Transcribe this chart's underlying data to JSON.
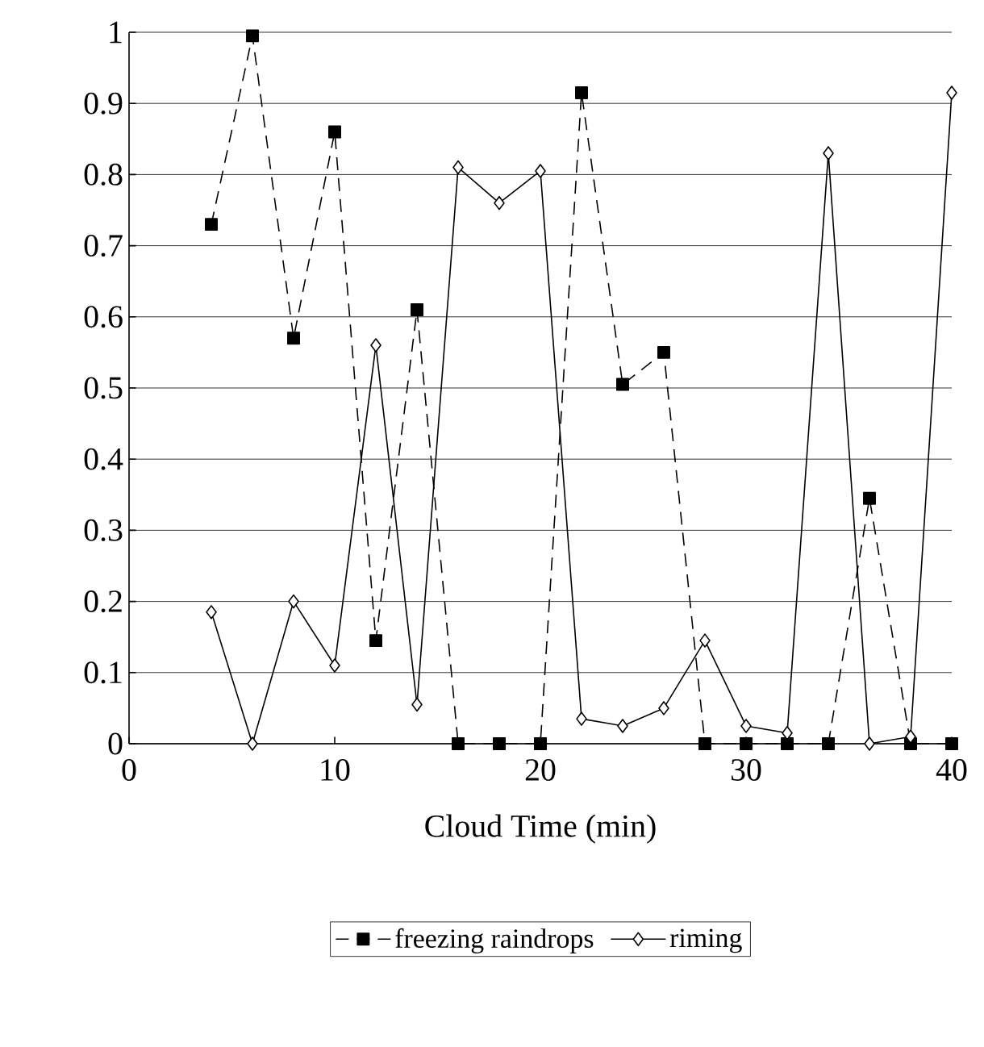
{
  "chart_data": {
    "type": "line",
    "xlabel": "Cloud Time (min)",
    "x": [
      4,
      6,
      8,
      10,
      12,
      14,
      16,
      18,
      20,
      22,
      24,
      26,
      28,
      30,
      32,
      34,
      36,
      38,
      40
    ],
    "series": [
      {
        "name": "freezing raindrops",
        "color": "#000000",
        "marker": "square",
        "line_style": "dashed",
        "values": [
          0.73,
          0.995,
          0.57,
          0.86,
          0.145,
          0.61,
          0,
          0,
          0,
          0.915,
          0.505,
          0.55,
          0,
          0,
          0,
          0,
          0.345,
          0,
          0
        ]
      },
      {
        "name": "riming",
        "color": "#000000",
        "marker": "diamond",
        "line_style": "solid",
        "values": [
          0.185,
          0,
          0.2,
          0.11,
          0.56,
          0.055,
          0.81,
          0.76,
          0.805,
          0.035,
          0.025,
          0.05,
          0.145,
          0.025,
          0.015,
          0.83,
          0,
          0.01,
          0.915
        ]
      }
    ],
    "xlim": [
      0,
      40
    ],
    "xticks": [
      0,
      10,
      20,
      30,
      40
    ],
    "ylim": [
      0,
      1
    ],
    "yticks": [
      0,
      0.1,
      0.2,
      0.3,
      0.4,
      0.5,
      0.6,
      0.7,
      0.8,
      0.9,
      1
    ],
    "grid": "y",
    "legend": "bottom"
  }
}
